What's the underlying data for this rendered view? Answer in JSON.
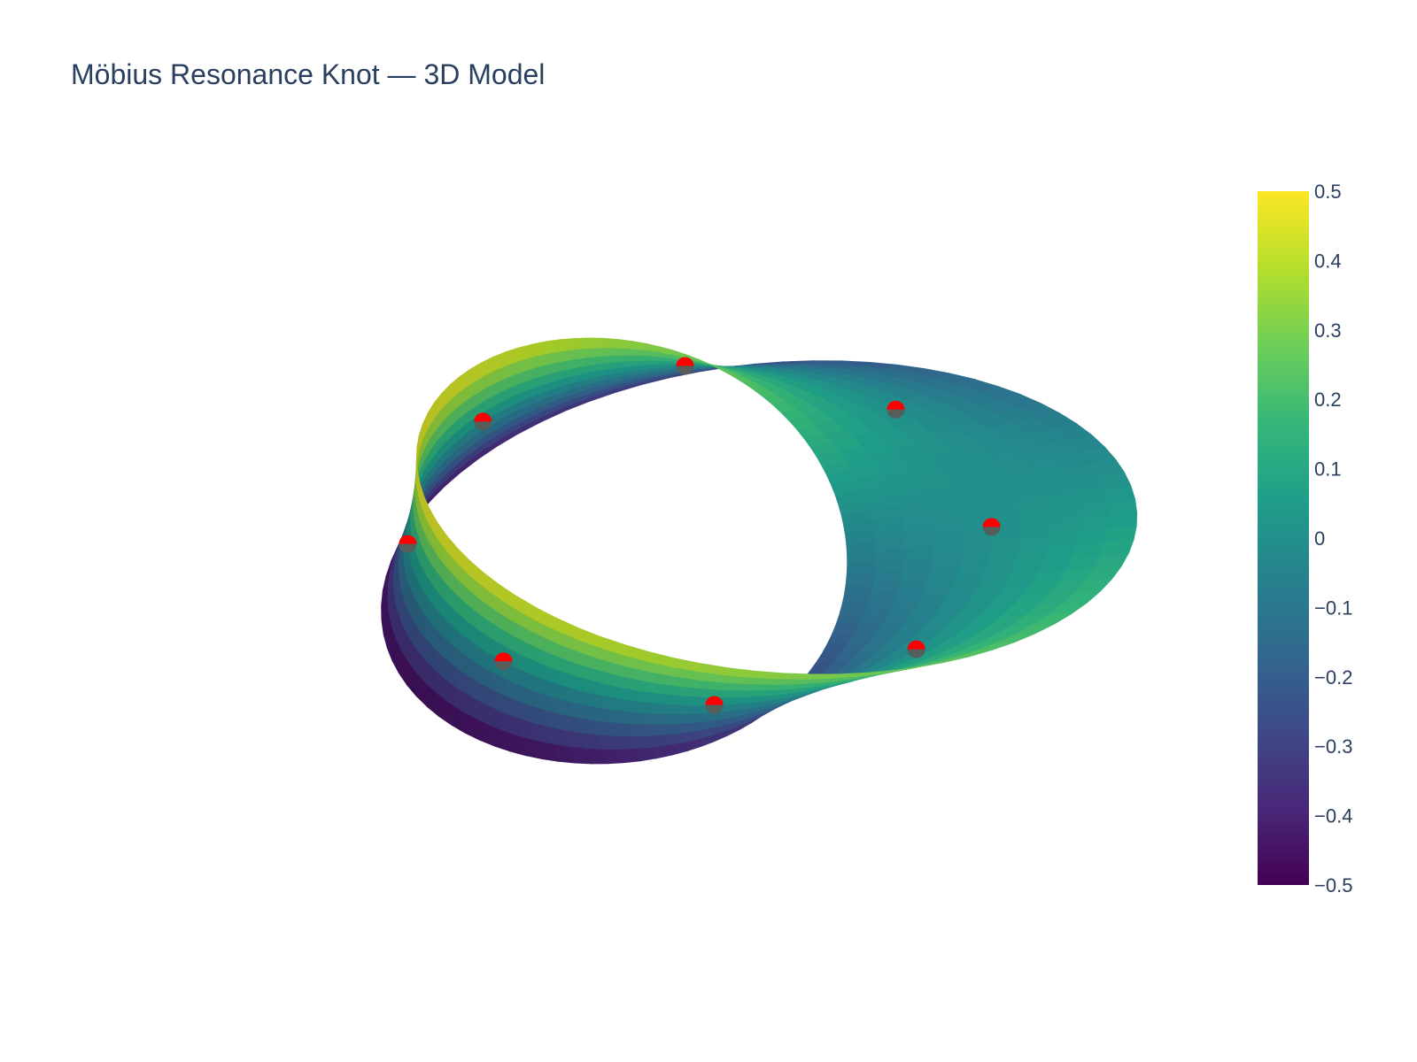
{
  "chart_data": {
    "type": "surface",
    "title": "Möbius Resonance Knot — 3D Model",
    "surface": {
      "name": "Möbius strip",
      "colorscale": "Viridis",
      "color_range": [
        -0.5,
        0.5
      ]
    },
    "markers": {
      "color": "#ff0000",
      "count": 8
    },
    "colorbar": {
      "ticks": [
        {
          "value": 0.5,
          "label": "0.5"
        },
        {
          "value": 0.4,
          "label": "0.4"
        },
        {
          "value": 0.3,
          "label": "0.3"
        },
        {
          "value": 0.2,
          "label": "0.2"
        },
        {
          "value": 0.1,
          "label": "0.1"
        },
        {
          "value": 0,
          "label": "0"
        },
        {
          "value": -0.1,
          "label": "−0.1"
        },
        {
          "value": -0.2,
          "label": "−0.2"
        },
        {
          "value": -0.3,
          "label": "−0.3"
        },
        {
          "value": -0.4,
          "label": "−0.4"
        },
        {
          "value": -0.5,
          "label": "−0.5"
        }
      ]
    },
    "viridis_stops": [
      "#440154",
      "#482878",
      "#3e4989",
      "#31688e",
      "#26828e",
      "#1f9e89",
      "#35b779",
      "#6ece58",
      "#b5de2b",
      "#fde725"
    ]
  }
}
